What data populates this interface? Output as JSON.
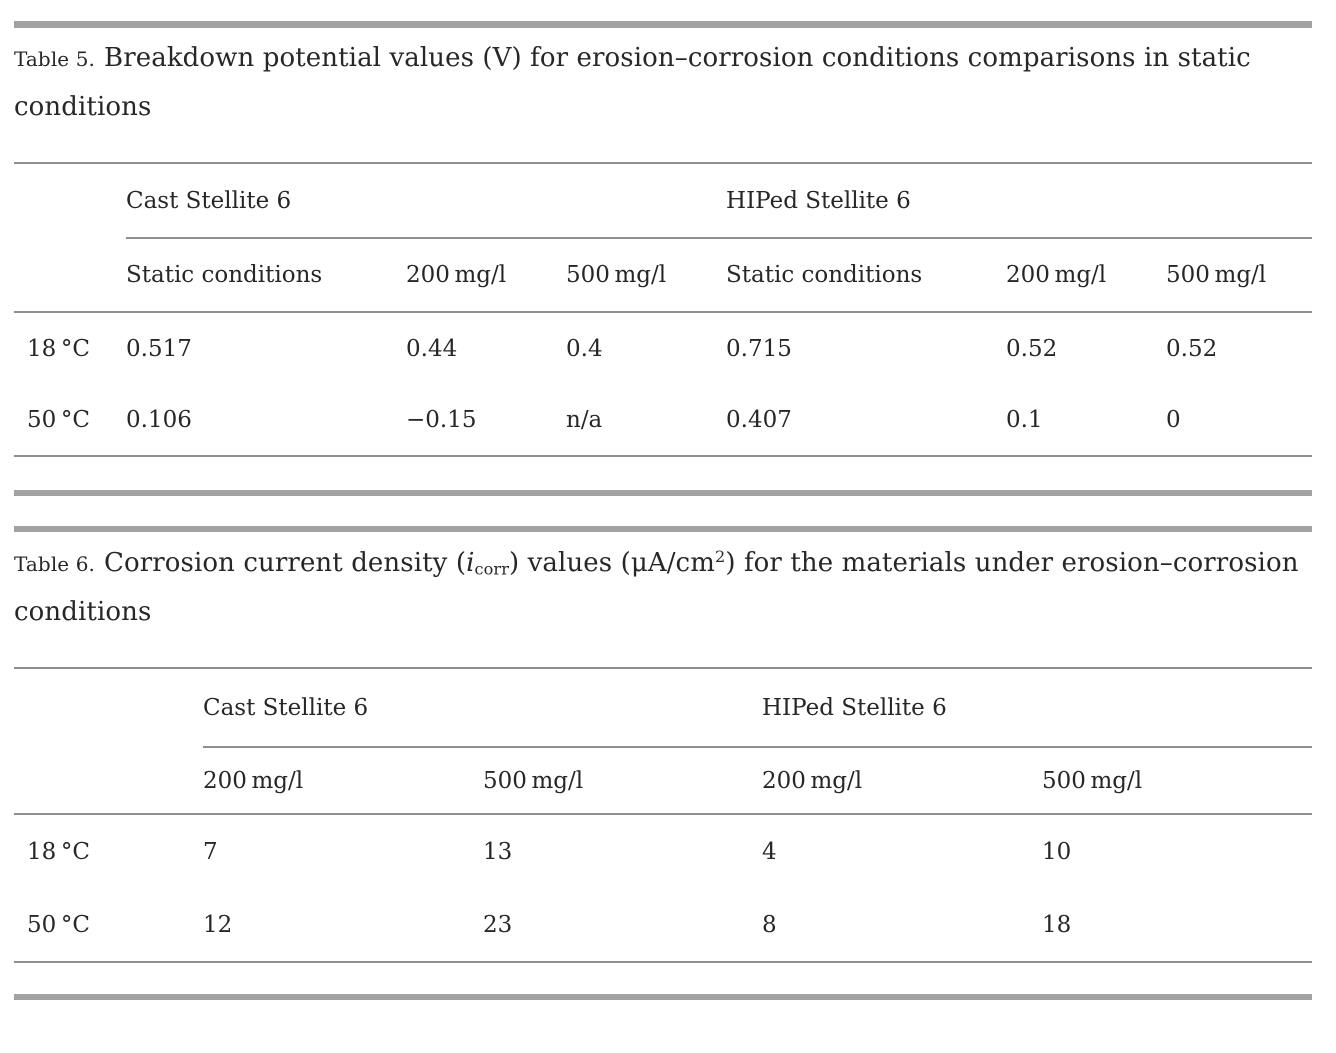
{
  "page": {
    "colors": {
      "text": "#272727",
      "rule": "#8f8f8f",
      "thick_bar": "#a2a2a2",
      "background": "#ffffff"
    }
  },
  "table5": {
    "caption_label": "Table 5.",
    "caption_text": "Breakdown potential values (V) for erosion–corrosion conditions comparisons in static conditions",
    "group_headers": [
      "Cast Stellite 6",
      "HIPed Stellite 6"
    ],
    "sub_headers": [
      "Static conditions",
      "200 mg/l",
      "500 mg/l",
      "Static conditions",
      "200 mg/l",
      "500 mg/l"
    ],
    "rows": [
      {
        "label": "18 °C",
        "values": [
          "0.517",
          "0.44",
          "0.4",
          "0.715",
          "0.52",
          "0.52"
        ]
      },
      {
        "label": "50 °C",
        "values": [
          "0.106",
          "−0.15",
          "n/a",
          "0.407",
          "0.1",
          "0"
        ]
      }
    ]
  },
  "table6": {
    "caption_label": "Table 6.",
    "caption": {
      "pre": "Corrosion current density (",
      "var": "i",
      "sub": "corr",
      "mid": ") values (μA/cm",
      "sup": "2",
      "post": ") for the materials under erosion–corrosion conditions"
    },
    "group_headers": [
      "Cast Stellite 6",
      "HIPed Stellite 6"
    ],
    "sub_headers": [
      "200 mg/l",
      "500 mg/l",
      "200 mg/l",
      "500 mg/l"
    ],
    "rows": [
      {
        "label": "18 °C",
        "values": [
          "7",
          "13",
          "4",
          "10"
        ]
      },
      {
        "label": "50 °C",
        "values": [
          "12",
          "23",
          "8",
          "18"
        ]
      }
    ]
  }
}
